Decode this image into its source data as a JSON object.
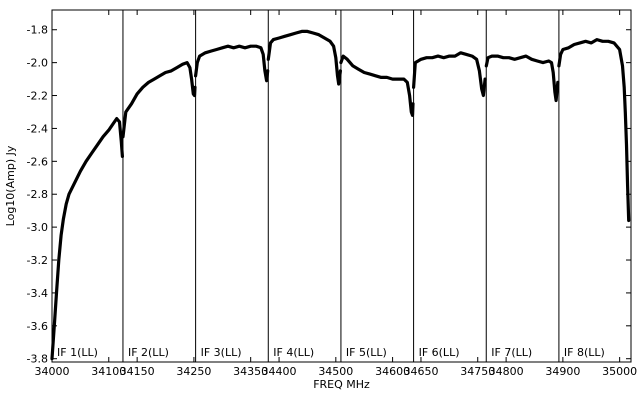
{
  "chart_data": {
    "type": "line",
    "xlabel": "FREQ MHz",
    "ylabel": "Log10(Amp) Jy",
    "xlim": [
      34000,
      35020
    ],
    "ylim": [
      -3.82,
      -1.68
    ],
    "grid": false,
    "x_ticks": [
      {
        "value": 34000,
        "label": "34000"
      },
      {
        "value": 34100,
        "label": "34100"
      },
      {
        "value": 34150,
        "label": "34150"
      },
      {
        "value": 34250,
        "label": "34250"
      },
      {
        "value": 34350,
        "label": "34350"
      },
      {
        "value": 34400,
        "label": "34400"
      },
      {
        "value": 34500,
        "label": "34500"
      },
      {
        "value": 34600,
        "label": "34600"
      },
      {
        "value": 34650,
        "label": "34650"
      },
      {
        "value": 34750,
        "label": "34750"
      },
      {
        "value": 34800,
        "label": "34800"
      },
      {
        "value": 34900,
        "label": "34900"
      },
      {
        "value": 35000,
        "label": "35000"
      }
    ],
    "y_ticks": [
      {
        "value": -1.8,
        "label": "-1.8"
      },
      {
        "value": -2.0,
        "label": "-2.0"
      },
      {
        "value": -2.2,
        "label": "-2.2"
      },
      {
        "value": -2.4,
        "label": "-2.4"
      },
      {
        "value": -2.6,
        "label": "-2.6"
      },
      {
        "value": -2.8,
        "label": "-2.8"
      },
      {
        "value": -3.0,
        "label": "-3.0"
      },
      {
        "value": -3.2,
        "label": "-3.2"
      },
      {
        "value": -3.4,
        "label": "-3.4"
      },
      {
        "value": -3.6,
        "label": "-3.6"
      },
      {
        "value": -3.8,
        "label": "-3.8"
      }
    ],
    "if_boundaries": [
      34125,
      34253,
      34381,
      34509,
      34637,
      34765,
      34893
    ],
    "if_labels": [
      {
        "x": 34000,
        "label": "IF 1(LL)"
      },
      {
        "x": 34125,
        "label": "IF 2(LL)"
      },
      {
        "x": 34253,
        "label": "IF 3(LL)"
      },
      {
        "x": 34381,
        "label": "IF 4(LL)"
      },
      {
        "x": 34509,
        "label": "IF 5(LL)"
      },
      {
        "x": 34637,
        "label": "IF 6(LL)"
      },
      {
        "x": 34765,
        "label": "IF 7(LL)"
      },
      {
        "x": 34893,
        "label": "IF 8(LL)"
      }
    ],
    "series": [
      {
        "color": "#000000",
        "segments": [
          [
            [
              34000,
              -3.8
            ],
            [
              34004,
              -3.6
            ],
            [
              34008,
              -3.4
            ],
            [
              34012,
              -3.2
            ],
            [
              34016,
              -3.05
            ],
            [
              34020,
              -2.95
            ],
            [
              34025,
              -2.86
            ],
            [
              34030,
              -2.8
            ],
            [
              34040,
              -2.73
            ],
            [
              34050,
              -2.66
            ],
            [
              34060,
              -2.6
            ],
            [
              34070,
              -2.55
            ],
            [
              34080,
              -2.5
            ],
            [
              34090,
              -2.45
            ],
            [
              34100,
              -2.41
            ],
            [
              34108,
              -2.37
            ],
            [
              34114,
              -2.34
            ],
            [
              34119,
              -2.36
            ],
            [
              34122,
              -2.48
            ],
            [
              34124,
              -2.57
            ]
          ],
          [
            [
              34125,
              -2.45
            ],
            [
              34130,
              -2.3
            ],
            [
              34140,
              -2.25
            ],
            [
              34150,
              -2.19
            ],
            [
              34160,
              -2.15
            ],
            [
              34170,
              -2.12
            ],
            [
              34180,
              -2.1
            ],
            [
              34190,
              -2.08
            ],
            [
              34200,
              -2.06
            ],
            [
              34210,
              -2.05
            ],
            [
              34220,
              -2.03
            ],
            [
              34230,
              -2.01
            ],
            [
              34238,
              -2.0
            ],
            [
              34243,
              -2.03
            ],
            [
              34246,
              -2.1
            ],
            [
              34249,
              -2.19
            ],
            [
              34251,
              -2.2
            ],
            [
              34252,
              -2.15
            ]
          ],
          [
            [
              34253,
              -2.08
            ],
            [
              34256,
              -2.0
            ],
            [
              34260,
              -1.96
            ],
            [
              34270,
              -1.94
            ],
            [
              34280,
              -1.93
            ],
            [
              34290,
              -1.92
            ],
            [
              34300,
              -1.91
            ],
            [
              34310,
              -1.9
            ],
            [
              34320,
              -1.91
            ],
            [
              34330,
              -1.9
            ],
            [
              34340,
              -1.91
            ],
            [
              34350,
              -1.9
            ],
            [
              34360,
              -1.9
            ],
            [
              34368,
              -1.91
            ],
            [
              34372,
              -1.95
            ],
            [
              34375,
              -2.05
            ],
            [
              34378,
              -2.11
            ],
            [
              34380,
              -2.05
            ]
          ],
          [
            [
              34381,
              -1.98
            ],
            [
              34385,
              -1.88
            ],
            [
              34390,
              -1.86
            ],
            [
              34400,
              -1.85
            ],
            [
              34410,
              -1.84
            ],
            [
              34420,
              -1.83
            ],
            [
              34430,
              -1.82
            ],
            [
              34440,
              -1.81
            ],
            [
              34450,
              -1.81
            ],
            [
              34460,
              -1.82
            ],
            [
              34470,
              -1.83
            ],
            [
              34480,
              -1.85
            ],
            [
              34490,
              -1.87
            ],
            [
              34496,
              -1.9
            ],
            [
              34500,
              -1.97
            ],
            [
              34503,
              -2.08
            ],
            [
              34505,
              -2.13
            ],
            [
              34508,
              -2.05
            ]
          ],
          [
            [
              34509,
              -2.0
            ],
            [
              34513,
              -1.96
            ],
            [
              34520,
              -1.98
            ],
            [
              34530,
              -2.02
            ],
            [
              34540,
              -2.04
            ],
            [
              34550,
              -2.06
            ],
            [
              34560,
              -2.07
            ],
            [
              34570,
              -2.08
            ],
            [
              34580,
              -2.09
            ],
            [
              34590,
              -2.09
            ],
            [
              34600,
              -2.1
            ],
            [
              34610,
              -2.1
            ],
            [
              34620,
              -2.1
            ],
            [
              34626,
              -2.12
            ],
            [
              34630,
              -2.2
            ],
            [
              34633,
              -2.3
            ],
            [
              34635,
              -2.32
            ],
            [
              34636,
              -2.25
            ]
          ],
          [
            [
              34637,
              -2.15
            ],
            [
              34640,
              -2.0
            ],
            [
              34645,
              -1.99
            ],
            [
              34650,
              -1.98
            ],
            [
              34660,
              -1.97
            ],
            [
              34670,
              -1.97
            ],
            [
              34680,
              -1.96
            ],
            [
              34690,
              -1.97
            ],
            [
              34700,
              -1.96
            ],
            [
              34710,
              -1.96
            ],
            [
              34720,
              -1.94
            ],
            [
              34730,
              -1.95
            ],
            [
              34740,
              -1.96
            ],
            [
              34748,
              -1.98
            ],
            [
              34753,
              -2.05
            ],
            [
              34757,
              -2.16
            ],
            [
              34760,
              -2.2
            ],
            [
              34763,
              -2.1
            ]
          ],
          [
            [
              34765,
              -2.02
            ],
            [
              34768,
              -1.97
            ],
            [
              34775,
              -1.96
            ],
            [
              34785,
              -1.96
            ],
            [
              34795,
              -1.97
            ],
            [
              34805,
              -1.97
            ],
            [
              34815,
              -1.98
            ],
            [
              34825,
              -1.97
            ],
            [
              34835,
              -1.96
            ],
            [
              34845,
              -1.98
            ],
            [
              34855,
              -1.99
            ],
            [
              34865,
              -2.0
            ],
            [
              34875,
              -1.99
            ],
            [
              34880,
              -2.0
            ],
            [
              34883,
              -2.06
            ],
            [
              34886,
              -2.18
            ],
            [
              34888,
              -2.23
            ],
            [
              34891,
              -2.12
            ]
          ],
          [
            [
              34893,
              -2.02
            ],
            [
              34896,
              -1.95
            ],
            [
              34900,
              -1.92
            ],
            [
              34910,
              -1.91
            ],
            [
              34920,
              -1.89
            ],
            [
              34930,
              -1.88
            ],
            [
              34940,
              -1.87
            ],
            [
              34950,
              -1.88
            ],
            [
              34960,
              -1.86
            ],
            [
              34970,
              -1.87
            ],
            [
              34980,
              -1.87
            ],
            [
              34990,
              -1.88
            ],
            [
              35000,
              -1.92
            ],
            [
              35005,
              -2.02
            ],
            [
              35008,
              -2.15
            ],
            [
              35010,
              -2.3
            ],
            [
              35012,
              -2.5
            ],
            [
              35014,
              -2.75
            ],
            [
              35016,
              -2.96
            ]
          ]
        ]
      }
    ]
  }
}
